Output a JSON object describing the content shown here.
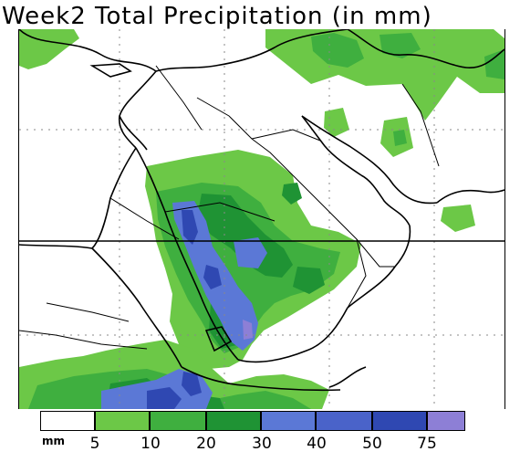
{
  "title": "Week2 Total Precipitation (in mm)",
  "legend": {
    "unit": "mm",
    "ticks": [
      "5",
      "10",
      "20",
      "30",
      "40",
      "50",
      "75"
    ],
    "bins": [
      {
        "name": "lt5",
        "color": "#ffffff"
      },
      {
        "name": "5-10",
        "color": "#6cc847"
      },
      {
        "name": "10-20",
        "color": "#3faf3f"
      },
      {
        "name": "20-30",
        "color": "#1f9334"
      },
      {
        "name": "30-40",
        "color": "#5b78d6"
      },
      {
        "name": "40-50",
        "color": "#4a63c9"
      },
      {
        "name": "50-75",
        "color": "#2f48b2"
      },
      {
        "name": "gt75",
        "color": "#8d7fd6"
      }
    ]
  },
  "map": {
    "region": "Arabian Peninsula, Red Sea, Horn of Africa",
    "gridlines": "dotted",
    "colors": {
      "light_green": "#6cc847",
      "mid_green": "#3faf3f",
      "dark_green": "#1f9334",
      "light_blue": "#5b78d6",
      "mid_blue": "#4a63c9",
      "dark_blue": "#2f48b2",
      "purple": "#8d7fd6",
      "coast": "#000000"
    }
  }
}
